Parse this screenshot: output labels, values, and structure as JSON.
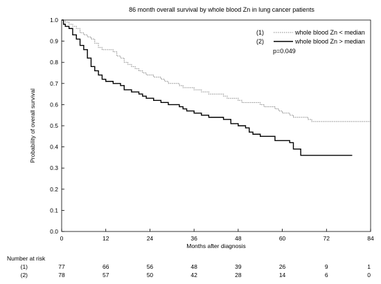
{
  "chart_data": {
    "type": "line",
    "title": "86 month overall survival by whole blood Zn in lung cancer patients",
    "xlabel": "Months after diagnosis",
    "ylabel": "Probability of overall survival",
    "xlim": [
      0,
      84
    ],
    "ylim": [
      0.0,
      1.0
    ],
    "x_ticks": [
      "0",
      "12",
      "24",
      "36",
      "48",
      "60",
      "72",
      "84"
    ],
    "y_ticks": [
      "0.0",
      "0.1",
      "0.2",
      "0.3",
      "0.4",
      "0.5",
      "0.6",
      "0.7",
      "0.8",
      "0.9",
      "1.0"
    ],
    "grid": false,
    "legend_position": "top-right",
    "annotation": "p=0.049",
    "series": [
      {
        "name": "whole blood Zn < median",
        "number": "(1)",
        "style": "dotted",
        "color": "#888888",
        "points": [
          [
            0,
            1.0
          ],
          [
            1,
            0.99
          ],
          [
            2,
            0.98
          ],
          [
            3,
            0.97
          ],
          [
            4,
            0.96
          ],
          [
            5,
            0.94
          ],
          [
            6,
            0.93
          ],
          [
            7,
            0.92
          ],
          [
            8,
            0.91
          ],
          [
            9,
            0.89
          ],
          [
            10,
            0.87
          ],
          [
            11,
            0.86
          ],
          [
            14,
            0.85
          ],
          [
            15,
            0.83
          ],
          [
            16,
            0.82
          ],
          [
            17,
            0.8
          ],
          [
            18,
            0.79
          ],
          [
            19,
            0.78
          ],
          [
            20,
            0.77
          ],
          [
            21,
            0.76
          ],
          [
            22,
            0.75
          ],
          [
            23,
            0.74
          ],
          [
            25,
            0.73
          ],
          [
            27,
            0.72
          ],
          [
            28,
            0.71
          ],
          [
            29,
            0.7
          ],
          [
            32,
            0.69
          ],
          [
            33,
            0.68
          ],
          [
            36,
            0.67
          ],
          [
            38,
            0.66
          ],
          [
            40,
            0.65
          ],
          [
            44,
            0.64
          ],
          [
            45,
            0.63
          ],
          [
            48,
            0.62
          ],
          [
            49,
            0.61
          ],
          [
            54,
            0.6
          ],
          [
            55,
            0.59
          ],
          [
            58,
            0.58
          ],
          [
            59,
            0.57
          ],
          [
            60,
            0.56
          ],
          [
            62,
            0.55
          ],
          [
            63,
            0.54
          ],
          [
            67,
            0.53
          ],
          [
            68,
            0.52
          ],
          [
            84,
            0.52
          ]
        ]
      },
      {
        "name": "whole blood Zn > median",
        "number": "(2)",
        "style": "solid",
        "color": "#000000",
        "points": [
          [
            0,
            1.0
          ],
          [
            0.5,
            0.98
          ],
          [
            1,
            0.97
          ],
          [
            2,
            0.96
          ],
          [
            3,
            0.93
          ],
          [
            4,
            0.91
          ],
          [
            5,
            0.88
          ],
          [
            6,
            0.86
          ],
          [
            7,
            0.82
          ],
          [
            8,
            0.78
          ],
          [
            9,
            0.76
          ],
          [
            10,
            0.74
          ],
          [
            11,
            0.72
          ],
          [
            12,
            0.71
          ],
          [
            14,
            0.7
          ],
          [
            16,
            0.69
          ],
          [
            17,
            0.67
          ],
          [
            19,
            0.66
          ],
          [
            21,
            0.65
          ],
          [
            22,
            0.64
          ],
          [
            23,
            0.63
          ],
          [
            25,
            0.62
          ],
          [
            27,
            0.61
          ],
          [
            29,
            0.6
          ],
          [
            32,
            0.59
          ],
          [
            33,
            0.58
          ],
          [
            34,
            0.57
          ],
          [
            36,
            0.56
          ],
          [
            38,
            0.55
          ],
          [
            40,
            0.54
          ],
          [
            44,
            0.53
          ],
          [
            46,
            0.51
          ],
          [
            48,
            0.5
          ],
          [
            50,
            0.49
          ],
          [
            51,
            0.47
          ],
          [
            52,
            0.46
          ],
          [
            54,
            0.45
          ],
          [
            58,
            0.43
          ],
          [
            62,
            0.42
          ],
          [
            63,
            0.39
          ],
          [
            65,
            0.36
          ],
          [
            79,
            0.36
          ]
        ]
      }
    ],
    "risk_table": {
      "label": "Number at risk",
      "times": [
        0,
        12,
        24,
        36,
        48,
        60,
        72,
        84
      ],
      "rows": [
        {
          "group": "(1)",
          "values": [
            "77",
            "66",
            "56",
            "48",
            "39",
            "26",
            "9",
            "1"
          ]
        },
        {
          "group": "(2)",
          "values": [
            "78",
            "57",
            "50",
            "42",
            "28",
            "14",
            "6",
            "0"
          ]
        }
      ]
    }
  }
}
